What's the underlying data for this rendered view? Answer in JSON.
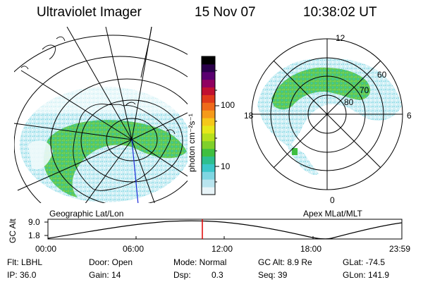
{
  "header": {
    "title": "Ultraviolet Imager",
    "date": "15 Nov 07",
    "time": "10:38:02 UT"
  },
  "left_panel": {
    "label": "Geographic Lat/Lon"
  },
  "right_panel": {
    "label": "Apex MLat/MLT",
    "mlt_labels": [
      "12",
      "18",
      "6",
      "0"
    ],
    "lat_labels": [
      "60",
      "70",
      "80"
    ]
  },
  "colorbar": {
    "unit_label": "photon cm⁻²s⁻¹",
    "tick_labels": [
      "100",
      "10"
    ],
    "colors": [
      "#e8f4f8",
      "#b8e4ee",
      "#7fd6e2",
      "#3cc7c9",
      "#2dbf8f",
      "#3fbf3f",
      "#7fd02a",
      "#b6e01c",
      "#e6e81a",
      "#f5c81a",
      "#f59a1a",
      "#ef6a1a",
      "#e03a1a",
      "#c01030",
      "#900060",
      "#5a0070",
      "#2a004a",
      "#000000"
    ]
  },
  "altitude_plot": {
    "ylabel": "GC Alt",
    "ytick_top": "9.0",
    "ytick_bottom": "1.8",
    "x_ticks": [
      "00:00",
      "06:00",
      "12:00",
      "18:00",
      "23:59"
    ],
    "marker_color": "#e00000"
  },
  "info": {
    "flt": "Flt: LBHL",
    "door": "Door: Open",
    "mode": "Mode: Normal",
    "gc_alt": "GC Alt: 8.9 Re",
    "glat": "GLat: -74.5",
    "ip": "IP: 36.0",
    "gain": "Gain: 14",
    "dsp_label": "Dsp:",
    "dsp_value": "0.3",
    "seq": "Seq: 39",
    "glon": "GLon: 141.9"
  }
}
